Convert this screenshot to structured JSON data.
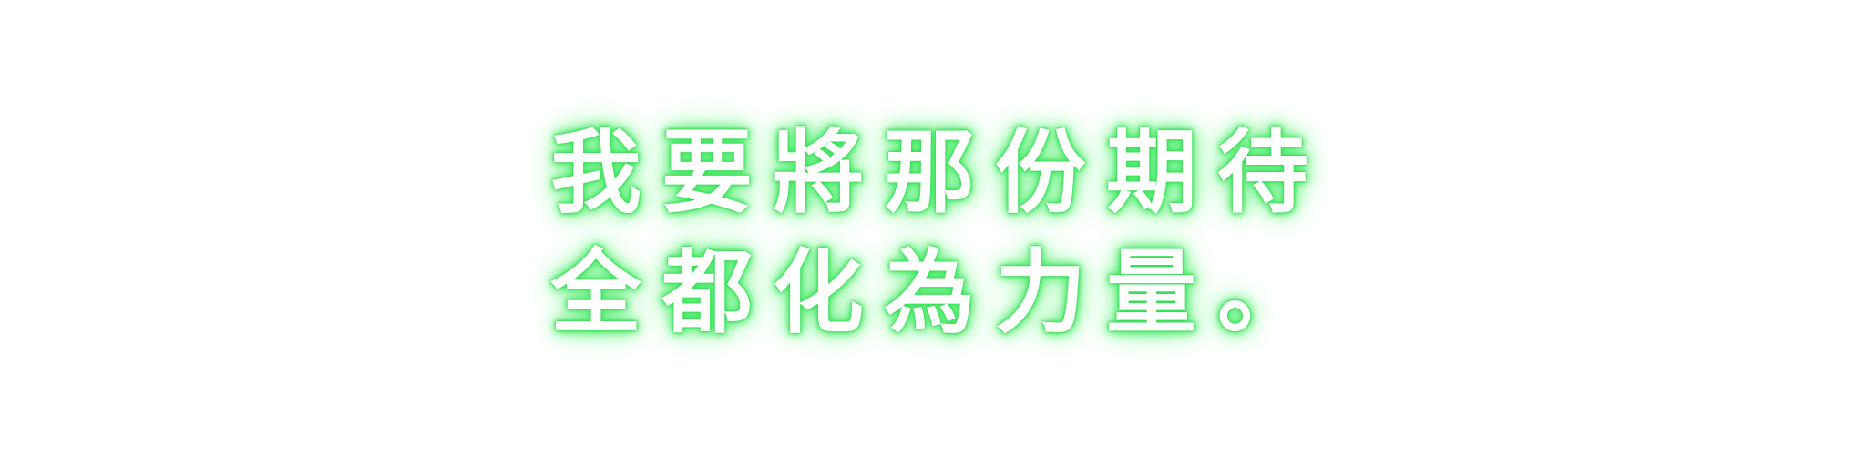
{
  "caption": {
    "lines": [
      "我要將那份期待",
      "全都化為力量。"
    ]
  },
  "colors": {
    "background": "#ffffff",
    "text": "#ffffff",
    "glow": "#3ee860"
  }
}
